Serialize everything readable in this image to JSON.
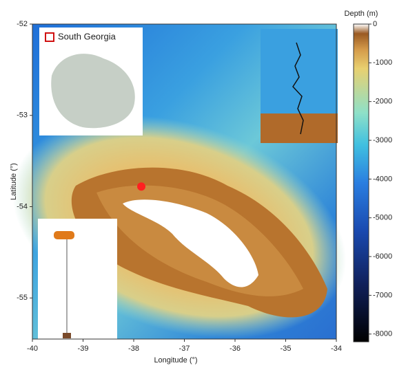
{
  "map": {
    "xlabel": "Longitude (°)",
    "ylabel": "Latitude (°)",
    "xlim": [
      -40,
      -34
    ],
    "ylim": [
      -55.45,
      -52
    ],
    "xticks": [
      -40,
      -39,
      -38,
      -37,
      -36,
      -35,
      -34
    ],
    "yticks": [
      -52,
      -53,
      -54,
      -55
    ],
    "inset_label": "South Georgia",
    "mooring": {
      "lon": -37.85,
      "lat": -53.78,
      "color": "#ff2020"
    },
    "colorbar": {
      "label": "Depth (m)",
      "lim": [
        0,
        -8200
      ],
      "ticks": [
        0,
        -1000,
        -2000,
        -3000,
        -4000,
        -5000,
        -6000,
        -7000,
        -8000
      ]
    }
  }
}
